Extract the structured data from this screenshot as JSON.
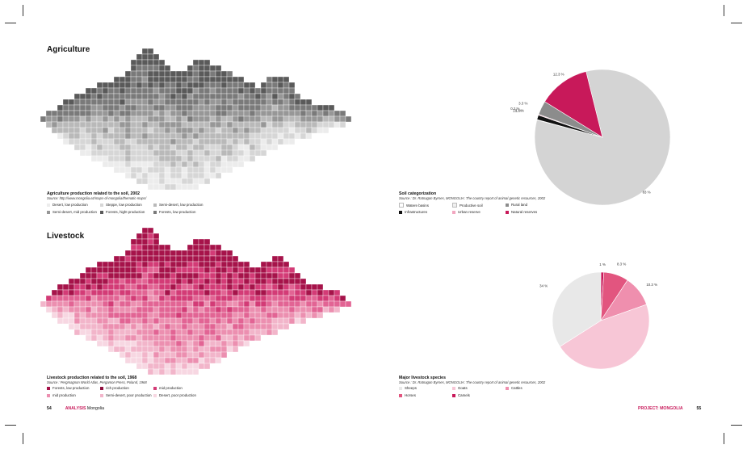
{
  "colors": {
    "accent": "#c8195a",
    "gray_scale": [
      "#ececec",
      "#d6d6d6",
      "#b9b9b9",
      "#979797",
      "#7a7a7a",
      "#5a5a5a"
    ],
    "pink_scale": [
      "#f7d7e2",
      "#f2b5ca",
      "#ec8fb0",
      "#e26494",
      "#d33b76",
      "#a6134a"
    ]
  },
  "left_page": {
    "agriculture": {
      "heading": "Agriculture",
      "caption_title": "Agriculture production related to the soil, 2002",
      "caption_source": "Source: http://www.mongolia.ez/maps-of-mongolia/thematic-maps/",
      "legend": [
        {
          "label": "Desert, low production",
          "color": "#ececec"
        },
        {
          "label": "Steppe, low production",
          "color": "#d6d6d6"
        },
        {
          "label": "Semi-desert, low production",
          "color": "#b9b9b9"
        },
        {
          "label": "Semi-desert, mid production",
          "color": "#979797"
        },
        {
          "label": "Forests, hight production",
          "color": "#5a5a5a"
        },
        {
          "label": "Forests, low production",
          "color": "#7a7a7a"
        }
      ]
    },
    "livestock": {
      "heading": "Livestock",
      "caption_title": "Livestock production related to the soil, 1968",
      "caption_source": "Source : Pergmagnon World Atlas, Pergamon Press, Poland, 1968",
      "legend": [
        {
          "label": "Forests, low production",
          "color": "#a6134a"
        },
        {
          "label": "rich production",
          "color": "#8e0f3e"
        },
        {
          "label": "mid production",
          "color": "#d33b76"
        },
        {
          "label": "mid production",
          "color": "#ec8fb0"
        },
        {
          "label": "Semi-desert, poor production",
          "color": "#f2b5ca"
        },
        {
          "label": "Desert, poor production",
          "color": "#f7d7e2"
        }
      ]
    },
    "footer": {
      "page_number": "54",
      "section": "ANALYSIS",
      "title": "Mongolia"
    }
  },
  "right_page": {
    "soil": {
      "caption_title": "Soil categorization",
      "caption_source": "Source : Dr. Ratnagon Byrnes, MONGOLIA: The country report of animal genetic resources, 2002",
      "legend": [
        {
          "label": "Watere basins",
          "color": "#ffffff"
        },
        {
          "label": "Productive soil",
          "color": "#f0f0f0"
        },
        {
          "label": "Rural land",
          "color": "#8c8c8c"
        },
        {
          "label": "Infrastructures",
          "color": "#111111"
        },
        {
          "label": "Urban reserve",
          "color": "#f2a7c0"
        },
        {
          "label": "Natural reserves",
          "color": "#c8195a"
        }
      ]
    },
    "livestock_species": {
      "caption_title": "Major livestock species",
      "caption_source": "Source : Dr. Ratnagon Byrnes, MONGOLIA: The country report of animal genetic resources, 2002",
      "legend": [
        {
          "label": "Sheeps",
          "color": "#e8e8e8"
        },
        {
          "label": "Goats",
          "color": "#f7c6d6"
        },
        {
          "label": "Cattles",
          "color": "#ef8fae"
        },
        {
          "label": "Horses",
          "color": "#e2557f"
        },
        {
          "label": "Camels",
          "color": "#c8195a"
        }
      ]
    },
    "footer": {
      "project": "PROJECT: MONGOLIA",
      "page_number": "55"
    }
  },
  "chart_data": [
    {
      "type": "pie",
      "slices": [
        {
          "label": "83 %",
          "value": 83,
          "color": "#d4d4d4"
        },
        {
          "label": "0.1 %",
          "value": 0.1,
          "color": "#ffffff"
        },
        {
          "label": "1.1 %",
          "value": 1.1,
          "color": "#111111"
        },
        {
          "label": "0.2 %",
          "value": 0.2,
          "color": "#f2a7c0"
        },
        {
          "label": "3.3 %",
          "value": 3.3,
          "color": "#8c8c8c"
        },
        {
          "label": "12.3 %",
          "value": 12.3,
          "color": "#c8195a"
        }
      ]
    },
    {
      "type": "pie",
      "slices": [
        {
          "label": "1 %",
          "value": 1,
          "color": "#c8195a"
        },
        {
          "label": "8.3 %",
          "value": 8.3,
          "color": "#e2557f"
        },
        {
          "label": "10.3 %",
          "value": 10.3,
          "color": "#ef8fae"
        },
        {
          "label": "",
          "value": 46.4,
          "color": "#f7c6d6"
        },
        {
          "label": "34 %",
          "value": 34,
          "color": "#e8e8e8"
        }
      ]
    }
  ]
}
